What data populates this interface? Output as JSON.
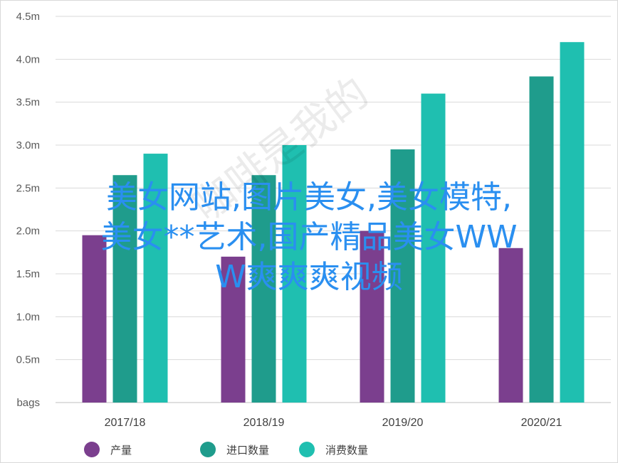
{
  "chart_data": {
    "type": "bar",
    "categories": [
      "2017/18",
      "2018/19",
      "2019/20",
      "2020/21"
    ],
    "series": [
      {
        "name": "产量",
        "values": [
          1.95,
          1.7,
          2.0,
          1.8
        ],
        "color": "#7b3f8e"
      },
      {
        "name": "进口数量",
        "values": [
          2.65,
          2.65,
          2.95,
          3.8
        ],
        "color": "#1f9c8c"
      },
      {
        "name": "消费数量",
        "values": [
          2.9,
          3.0,
          3.6,
          4.2
        ],
        "color": "#1fbfb0"
      }
    ],
    "yticks": [
      "bags",
      "0.5m",
      "1.0m",
      "1.5m",
      "2.0m",
      "2.5m",
      "3.0m",
      "3.5m",
      "4.0m",
      "4.5m"
    ],
    "ylim": [
      0,
      4.5
    ],
    "grid": true,
    "legend_position": "bottom",
    "title": "",
    "xlabel": "",
    "ylabel": ""
  },
  "overlay_text": {
    "line1": "美女网站,图片美女,美女模特,",
    "line2": "美女**艺术,国产精品美女WW",
    "line3": "W爽爽爽视频"
  },
  "watermark": "咖啡是我的"
}
